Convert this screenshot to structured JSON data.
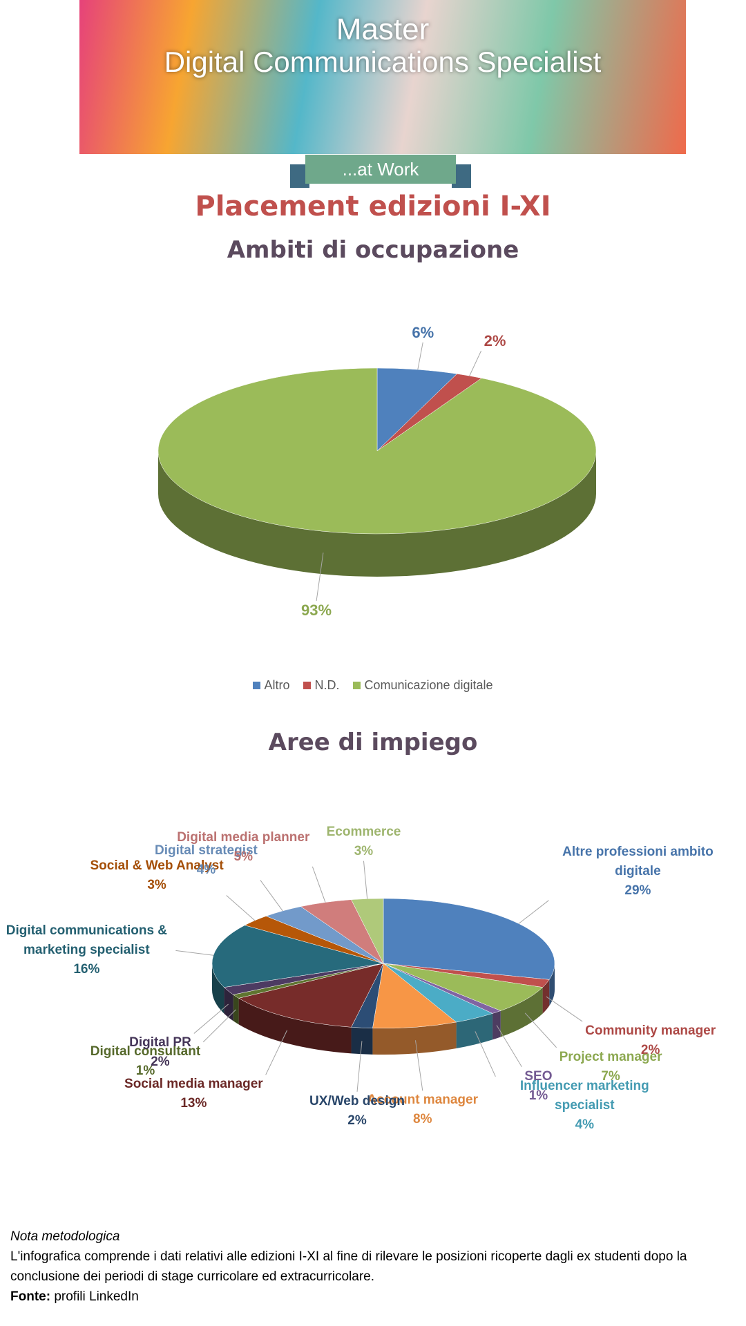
{
  "header": {
    "title": "Master",
    "subtitle": "Digital Communications Specialist",
    "ribbon": "...at Work"
  },
  "title": "Placement edizioni I-XI",
  "chart_data": [
    {
      "type": "pie",
      "title": "Ambiti di occupazione",
      "categories": [
        "Altro",
        "N.D.",
        "Comunicazione digitale"
      ],
      "values": [
        6,
        2,
        93
      ],
      "value_labels": [
        "6%",
        "2%",
        "93%"
      ],
      "colors": [
        "#4f81bd",
        "#c0504d",
        "#9bbb59"
      ],
      "legend": "bottom"
    },
    {
      "type": "pie",
      "title": "Aree di impiego",
      "categories": [
        "Altre professioni ambito digitale",
        "Community manager",
        "Project manager",
        "SEO",
        "Influencer marketing specialist",
        "Account manager",
        "UX/Web design",
        "Social media manager",
        "Digital consultant",
        "Digital PR",
        "Digital communications & marketing specialist",
        "Social & Web Analyst",
        "Digital strategist",
        "Digital media planner",
        "Ecommerce"
      ],
      "values": [
        29,
        2,
        7,
        1,
        4,
        8,
        2,
        13,
        1,
        2,
        16,
        3,
        4,
        5,
        3
      ],
      "value_labels": [
        "29%",
        "2%",
        "7%",
        "1%",
        "4%",
        "8%",
        "2%",
        "13%",
        "1%",
        "2%",
        "16%",
        "3%",
        "4%",
        "5%",
        "3%"
      ],
      "colors": [
        "#4f81bd",
        "#c0504d",
        "#9bbb59",
        "#8064a2",
        "#4bacc6",
        "#f79646",
        "#2c4d75",
        "#772c2a",
        "#5f7530",
        "#4d3b62",
        "#276a7c",
        "#b65708",
        "#729aca",
        "#d07d7c",
        "#afc97a"
      ]
    }
  ],
  "note": {
    "heading": "Nota metodologica",
    "text": "L'infografica comprende i dati relativi alle edizioni I-XI al fine di rilevare le posizioni ricoperte dagli ex studenti dopo la conclusione dei periodi di stage curricolare ed extracurricolare.",
    "source_label": "Fonte:",
    "source": "profili LinkedIn"
  }
}
